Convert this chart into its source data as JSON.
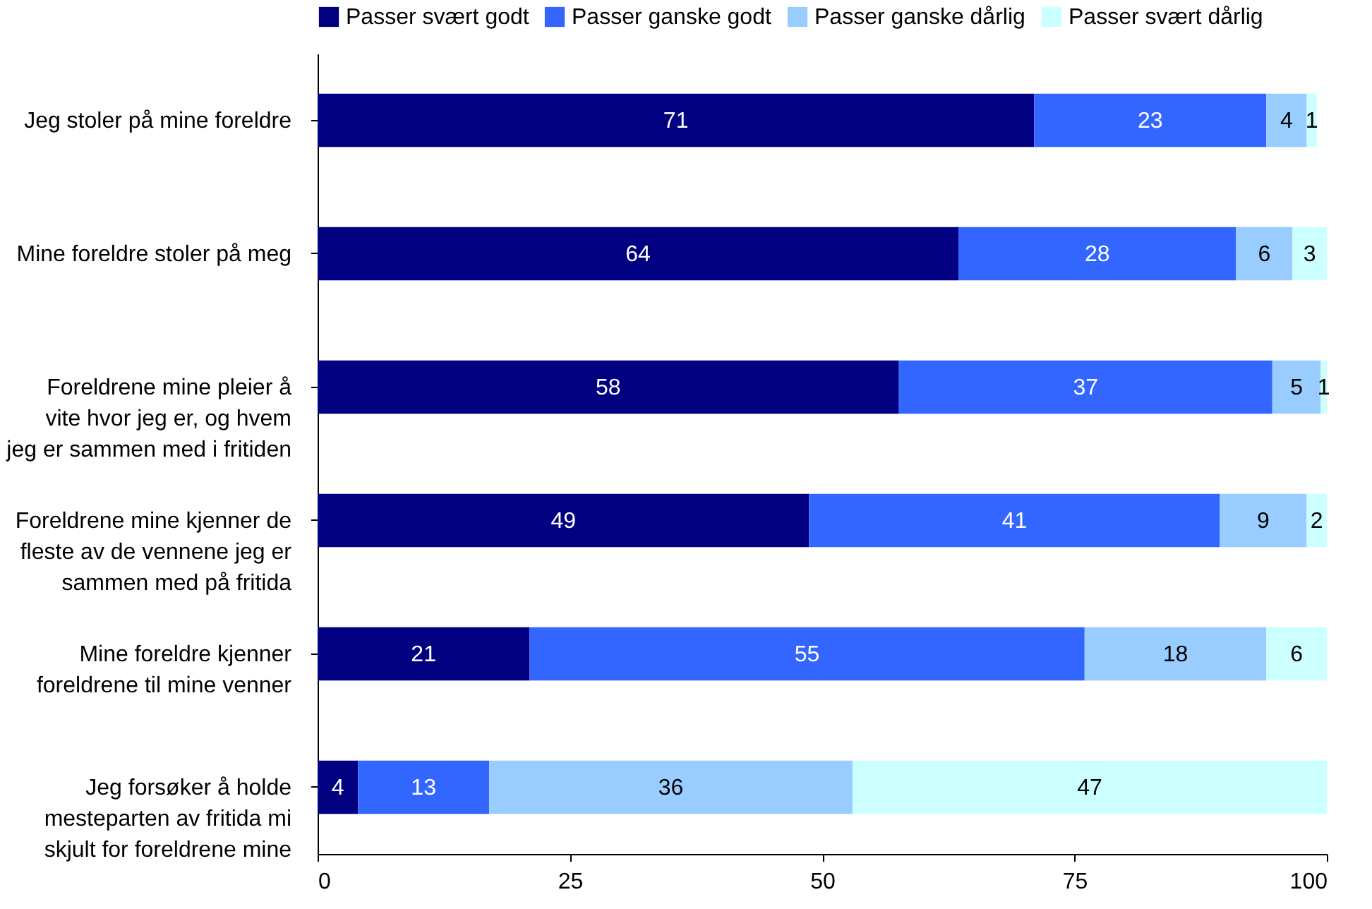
{
  "chart_data": {
    "type": "bar",
    "orientation": "horizontal",
    "stacked": true,
    "legend": "top",
    "grid": false,
    "categories": [
      "Jeg stoler på mine foreldre",
      "Mine foreldre stoler på meg",
      "Foreldrene mine pleier å vite hvor jeg er, og hvem jeg er sammen med i fritiden",
      "Foreldrene mine kjenner de fleste av de vennene jeg er sammen med på fritida",
      "Mine foreldre kjenner foreldrene til mine venner",
      "Jeg forsøker å holde mesteparten av fritida mi skjult for foreldrene mine"
    ],
    "series": [
      {
        "name": "Passer svært godt",
        "color": "#000080",
        "values": [
          71,
          63.5,
          57.6,
          48.7,
          21,
          4
        ],
        "value_labels": [
          "71",
          "64",
          "58",
          "49",
          "21",
          "4"
        ]
      },
      {
        "name": "Passer ganske godt",
        "color": "#3366ff",
        "values": [
          23,
          27.5,
          37,
          40.7,
          55,
          13
        ],
        "value_labels": [
          "23",
          "28",
          "37",
          "41",
          "55",
          "13"
        ]
      },
      {
        "name": "Passer ganske dårlig",
        "color": "#99ccff",
        "values": [
          4,
          5.6,
          4.8,
          8.6,
          18,
          36
        ],
        "value_labels": [
          "4",
          "6",
          "5",
          "9",
          "18",
          "36"
        ]
      },
      {
        "name": "Passer svært dårlig",
        "color": "#ccffff",
        "values": [
          1,
          3.4,
          0.6,
          2,
          6,
          47
        ],
        "value_labels": [
          "1",
          "3",
          "1",
          "2",
          "6",
          "47"
        ]
      }
    ],
    "xlim": [
      0,
      100
    ],
    "xticks": [
      0,
      25,
      50,
      75,
      100
    ]
  }
}
